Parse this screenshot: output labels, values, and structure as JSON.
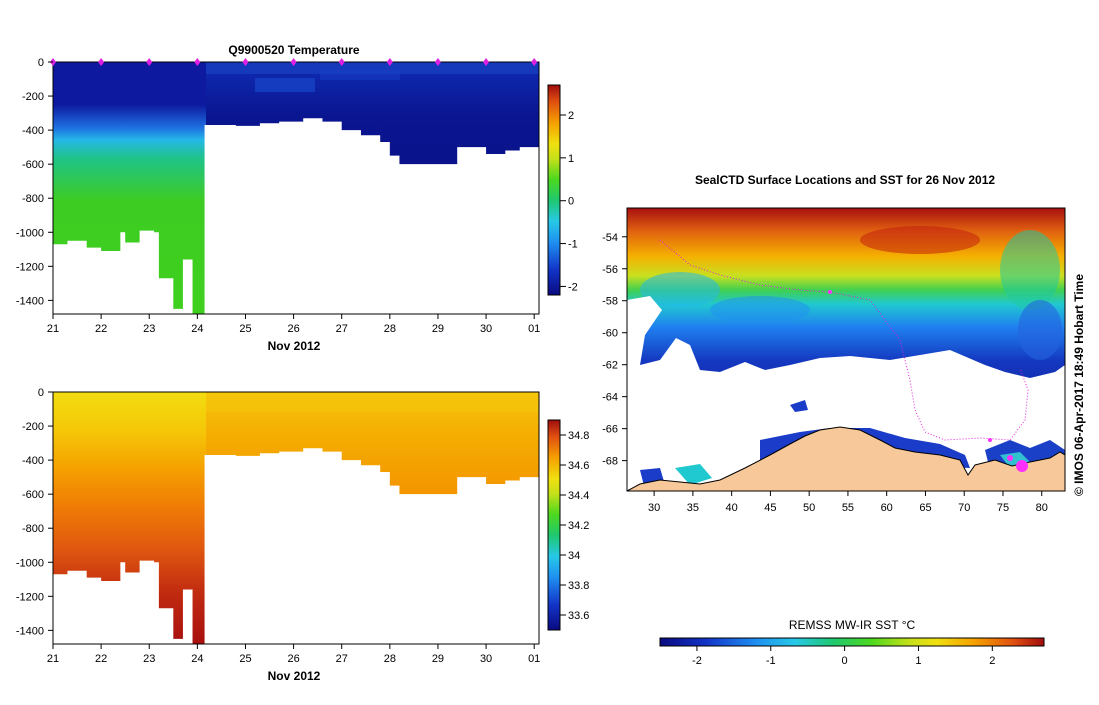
{
  "chart_data": [
    {
      "type": "heatmap",
      "title": "Q9900520  Temperature",
      "xlabel": "Nov 2012",
      "ylabel": "",
      "x_ticks": [
        "21",
        "22",
        "23",
        "24",
        "25",
        "26",
        "27",
        "28",
        "29",
        "30",
        "01"
      ],
      "y_ticks": [
        "0",
        "-200",
        "-400",
        "-600",
        "-800",
        "-1000",
        "-1200",
        "-1400"
      ],
      "xlim": [
        21,
        31.1
      ],
      "ylim": [
        -1480,
        0
      ],
      "profile_days": [
        21,
        22,
        23,
        24,
        25,
        26,
        27,
        28,
        29,
        30,
        31
      ],
      "bottom_depths": [
        [
          21.0,
          -1070
        ],
        [
          21.3,
          -1050
        ],
        [
          21.7,
          -1090
        ],
        [
          22.0,
          -1110
        ],
        [
          22.4,
          -1000
        ],
        [
          22.5,
          -1060
        ],
        [
          22.8,
          -990
        ],
        [
          23.1,
          -1000
        ],
        [
          23.2,
          -1270
        ],
        [
          23.5,
          -1450
        ],
        [
          23.7,
          -1160
        ],
        [
          23.9,
          -1480
        ],
        [
          24.15,
          -370
        ],
        [
          24.8,
          -375
        ],
        [
          25.3,
          -360
        ],
        [
          25.7,
          -350
        ],
        [
          26.2,
          -330
        ],
        [
          26.6,
          -350
        ],
        [
          27.0,
          -400
        ],
        [
          27.4,
          -430
        ],
        [
          27.8,
          -470
        ],
        [
          28.0,
          -550
        ],
        [
          28.2,
          -600
        ],
        [
          28.8,
          -600
        ],
        [
          29.4,
          -500
        ],
        [
          30.0,
          -540
        ],
        [
          30.4,
          -520
        ],
        [
          30.7,
          -500
        ],
        [
          31.1,
          -520
        ]
      ],
      "colorbar": {
        "ticks": [
          "2",
          "1",
          "0",
          "-1",
          "-2"
        ],
        "values": [
          2,
          1,
          0,
          -1,
          -2
        ],
        "range": [
          -2.2,
          2.7
        ]
      }
    },
    {
      "type": "heatmap",
      "title": "",
      "xlabel": "Nov 2012",
      "ylabel": "",
      "x_ticks": [
        "21",
        "22",
        "23",
        "24",
        "25",
        "26",
        "27",
        "28",
        "29",
        "30",
        "01"
      ],
      "y_ticks": [
        "0",
        "-200",
        "-400",
        "-600",
        "-800",
        "-1000",
        "-1200",
        "-1400"
      ],
      "xlim": [
        21,
        31.1
      ],
      "ylim": [
        -1480,
        0
      ],
      "colorbar": {
        "ticks": [
          "34.8",
          "34.6",
          "34.4",
          "34.2",
          "34",
          "33.8",
          "33.6"
        ],
        "values": [
          34.8,
          34.6,
          34.4,
          34.2,
          34.0,
          33.8,
          33.6
        ],
        "range": [
          33.5,
          34.9
        ]
      }
    },
    {
      "type": "heatmap",
      "title": "SealCTD Surface Locations and SST for 26 Nov 2012",
      "x_ticks": [
        "30",
        "35",
        "40",
        "45",
        "50",
        "55",
        "60",
        "65",
        "70",
        "75",
        "80"
      ],
      "x_values": [
        30,
        35,
        40,
        45,
        50,
        55,
        60,
        65,
        70,
        75,
        80
      ],
      "y_ticks": [
        "-54",
        "-56",
        "-58",
        "-60",
        "-62",
        "-64",
        "-66",
        "-68"
      ],
      "y_values": [
        -54,
        -56,
        -58,
        -60,
        -62,
        -64,
        -66,
        -68
      ],
      "xlim": [
        26.5,
        83
      ],
      "ylim": [
        -69.9,
        -52.2
      ],
      "colorbar_label": "REMSS MW-IR SST °C",
      "colorbar_ticks": [
        "-2",
        "-1",
        "0",
        "1",
        "2"
      ],
      "colorbar_values": [
        -2,
        -1,
        0,
        1,
        2
      ],
      "colorbar_range": [
        -2.5,
        2.7
      ],
      "credit": "© IMOS 06-Apr-2017 18:49 Hobart Time"
    }
  ]
}
